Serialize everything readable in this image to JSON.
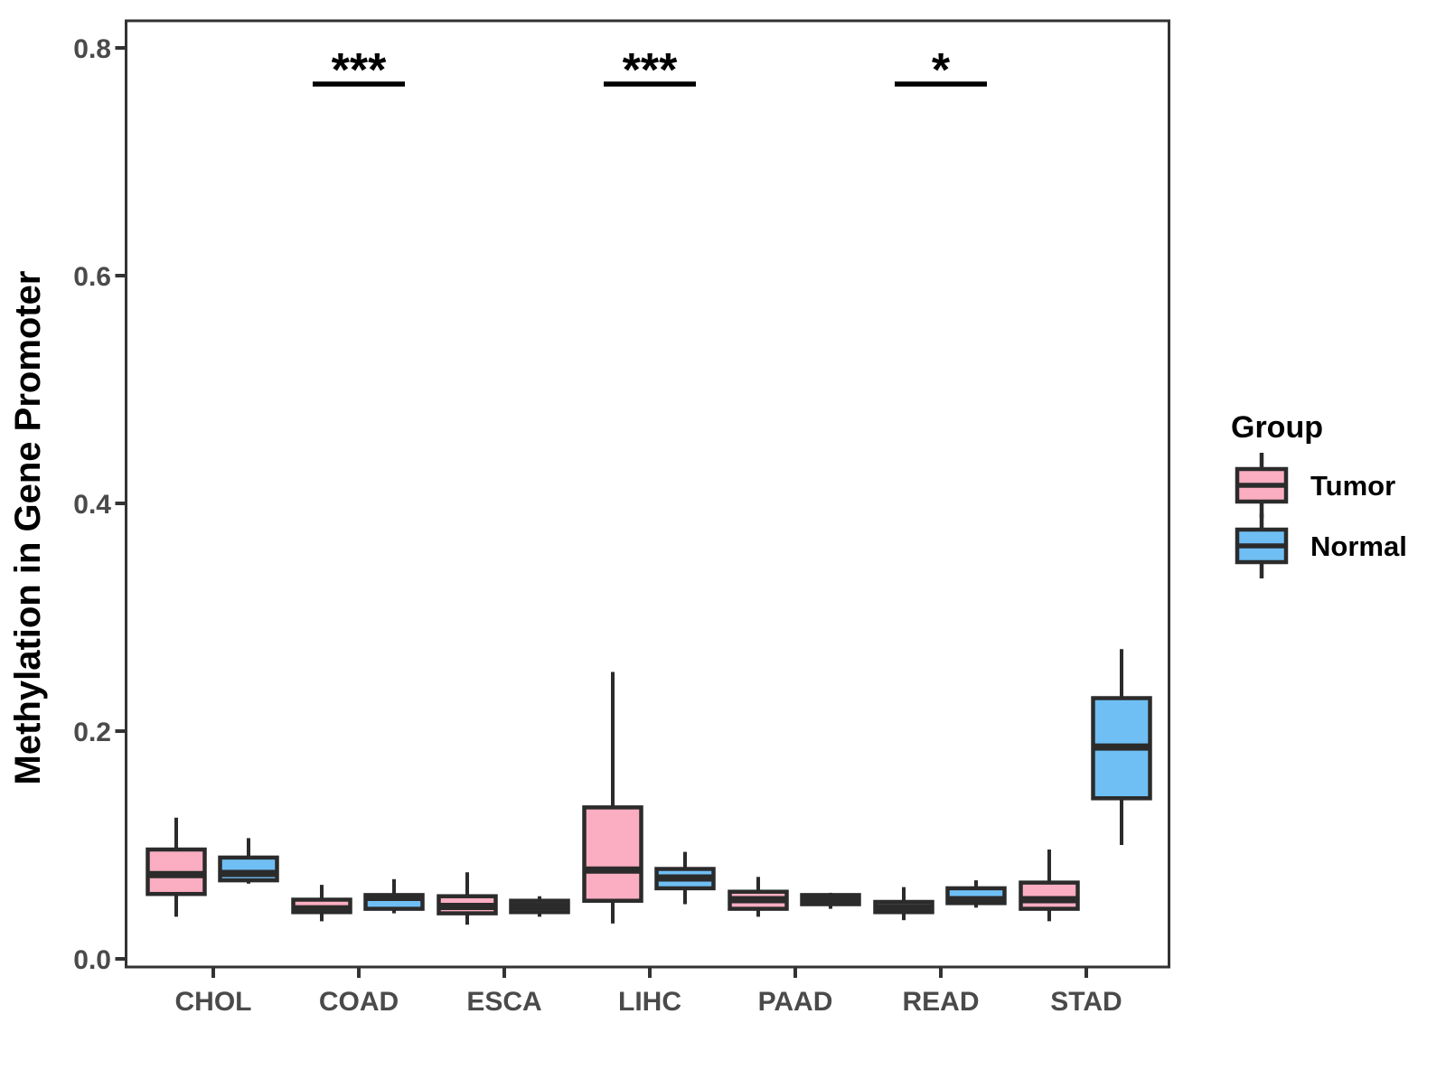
{
  "figure": {
    "y_axis": {
      "title": "Methylation in Gene Promoter",
      "tick_labels": [
        "0.0",
        "0.2",
        "0.4",
        "0.6",
        "0.8"
      ],
      "tick_values": [
        0.0,
        0.2,
        0.4,
        0.6,
        0.8
      ],
      "range": [
        0.0,
        0.8
      ]
    },
    "x_axis": {
      "categories": [
        "CHOL",
        "COAD",
        "ESCA",
        "LIHC",
        "PAAD",
        "READ",
        "STAD"
      ]
    },
    "legend": {
      "title": "Group",
      "items": [
        {
          "label": "Tumor",
          "color": "#FBAEC1"
        },
        {
          "label": "Normal",
          "color": "#6FBFF5"
        }
      ]
    },
    "colors": {
      "box_outline": "#2b2b2b",
      "panel_border": "#333333",
      "axis_text": "#4a4a4a",
      "significance": "#000000",
      "background": "#ffffff"
    }
  },
  "chart_data": {
    "type": "boxplot",
    "title": "",
    "xlabel": "",
    "ylabel": "Methylation in Gene Promoter",
    "ylim": [
      0.0,
      0.8
    ],
    "y_ticks": [
      "0.0",
      "0.2",
      "0.4",
      "0.6",
      "0.8"
    ],
    "grid": false,
    "legend_position": "right",
    "categories": [
      "CHOL",
      "COAD",
      "ESCA",
      "LIHC",
      "PAAD",
      "READ",
      "STAD"
    ],
    "series": [
      {
        "name": "Tumor",
        "color": "#FBAEC1",
        "boxes": [
          {
            "min": 0.037,
            "q1": 0.057,
            "median": 0.074,
            "q3": 0.096,
            "max": 0.124
          },
          {
            "min": 0.033,
            "q1": 0.041,
            "median": 0.044,
            "q3": 0.052,
            "max": 0.065
          },
          {
            "min": 0.03,
            "q1": 0.04,
            "median": 0.046,
            "q3": 0.055,
            "max": 0.076
          },
          {
            "min": 0.031,
            "q1": 0.051,
            "median": 0.078,
            "q3": 0.133,
            "max": 0.252
          },
          {
            "min": 0.037,
            "q1": 0.044,
            "median": 0.052,
            "q3": 0.059,
            "max": 0.072
          },
          {
            "min": 0.034,
            "q1": 0.041,
            "median": 0.045,
            "q3": 0.05,
            "max": 0.063
          },
          {
            "min": 0.033,
            "q1": 0.044,
            "median": 0.052,
            "q3": 0.067,
            "max": 0.096
          }
        ]
      },
      {
        "name": "Normal",
        "color": "#6FBFF5",
        "boxes": [
          {
            "min": 0.066,
            "q1": 0.069,
            "median": 0.075,
            "q3": 0.089,
            "max": 0.106
          },
          {
            "min": 0.04,
            "q1": 0.044,
            "median": 0.054,
            "q3": 0.056,
            "max": 0.07
          },
          {
            "min": 0.037,
            "q1": 0.041,
            "median": 0.046,
            "q3": 0.051,
            "max": 0.055
          },
          {
            "min": 0.048,
            "q1": 0.062,
            "median": 0.071,
            "q3": 0.079,
            "max": 0.094
          },
          {
            "min": 0.044,
            "q1": 0.048,
            "median": 0.052,
            "q3": 0.056,
            "max": 0.058
          },
          {
            "min": 0.045,
            "q1": 0.049,
            "median": 0.052,
            "q3": 0.062,
            "max": 0.069
          },
          {
            "min": 0.1,
            "q1": 0.141,
            "median": 0.186,
            "q3": 0.229,
            "max": 0.272
          }
        ]
      }
    ],
    "significance": [
      {
        "category": "COAD",
        "label": "***"
      },
      {
        "category": "LIHC",
        "label": "***"
      },
      {
        "category": "READ",
        "label": "*"
      }
    ]
  }
}
